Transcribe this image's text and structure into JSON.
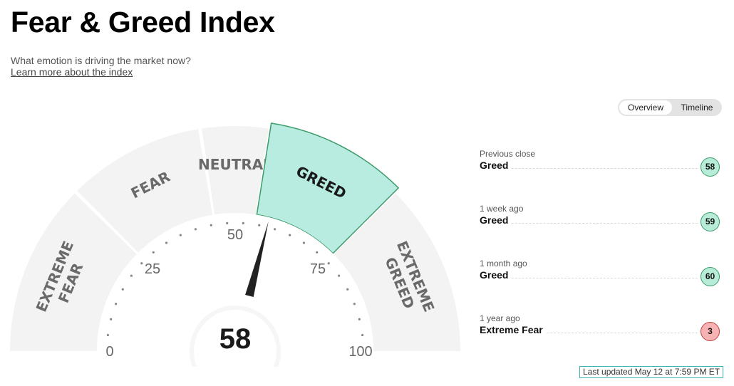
{
  "page": {
    "title": "Fear & Greed Index",
    "subtitle": "What emotion is driving the market now?",
    "learn_more": "Learn more about the index"
  },
  "toggle": {
    "overview": "Overview",
    "timeline": "Timeline"
  },
  "history": [
    {
      "label": "Previous close",
      "value": "Greed",
      "score": "58",
      "sentiment": "greed"
    },
    {
      "label": "1 week ago",
      "value": "Greed",
      "score": "59",
      "sentiment": "greed"
    },
    {
      "label": "1 month ago",
      "value": "Greed",
      "score": "60",
      "sentiment": "greed"
    },
    {
      "label": "1 year ago",
      "value": "Extreme Fear",
      "score": "3",
      "sentiment": "fear"
    }
  ],
  "last_updated": "Last updated May 12 at 7:59 PM ET",
  "chart_data": {
    "type": "gauge",
    "value": 58,
    "range": [
      0,
      100
    ],
    "ticks": [
      0,
      25,
      50,
      75,
      100
    ],
    "segments": [
      {
        "label": [
          "EXTREME",
          "FEAR"
        ],
        "from": 0,
        "to": 25
      },
      {
        "label": [
          "FEAR"
        ],
        "from": 25,
        "to": 45
      },
      {
        "label": [
          "NEUTRAL"
        ],
        "from": 45,
        "to": 55
      },
      {
        "label": [
          "GREED"
        ],
        "from": 55,
        "to": 75
      },
      {
        "label": [
          "EXTREME",
          "GREED"
        ],
        "from": 75,
        "to": 100
      }
    ],
    "active_segment": 3,
    "colors": {
      "segment": "#f3f3f3",
      "active_fill": "#b9ece0",
      "active_stroke": "#3d9a6a",
      "needle": "#222222",
      "tick_label": "#666666"
    }
  }
}
